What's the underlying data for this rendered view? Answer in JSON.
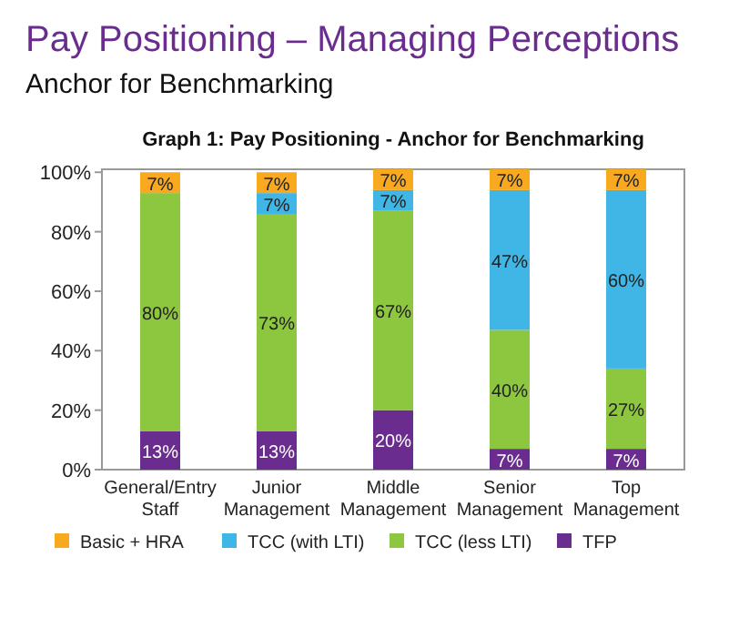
{
  "chart_data": {
    "type": "bar",
    "title": "Pay Positioning – Managing Perceptions",
    "subtitle": "Anchor for Benchmarking",
    "annotations": [
      "Graph 1: Pay Positioning - Anchor for Benchmarking"
    ],
    "categories": [
      "General/Entry Staff",
      "Junior Management",
      "Middle Management",
      "Senior Management",
      "Top Management"
    ],
    "stacked": true,
    "series": [
      {
        "name": "TFP",
        "color": "#6a2c8e",
        "values": [
          13,
          13,
          20,
          7,
          7
        ],
        "value_labels": [
          "13%",
          "13%",
          "20%",
          "7%",
          "7%"
        ]
      },
      {
        "name": "TCC (less LTI)",
        "color": "#8dc63f",
        "values": [
          80,
          73,
          67,
          40,
          27
        ],
        "value_labels": [
          "80%",
          "73%",
          "67%",
          "40%",
          "27%"
        ]
      },
      {
        "name": "TCC (with LTI)",
        "color": "#40b6e6",
        "values": [
          0,
          7,
          7,
          47,
          60
        ],
        "value_labels": [
          null,
          "7%",
          "7%",
          "47%",
          "60%"
        ]
      },
      {
        "name": "Basic + HRA",
        "color": "#f8a91f",
        "values": [
          7,
          7,
          7,
          7,
          7
        ],
        "value_labels": [
          "7%",
          "7%",
          "7%",
          "7%",
          "7%"
        ]
      }
    ],
    "ylim": [
      0,
      101
    ],
    "yticks": [
      {
        "value": 0,
        "label": "0%"
      },
      {
        "value": 20,
        "label": "20%"
      },
      {
        "value": 40,
        "label": "40%"
      },
      {
        "value": 60,
        "label": "60%"
      },
      {
        "value": 80,
        "label": "80%"
      },
      {
        "value": 100,
        "label": "100%"
      }
    ],
    "legend": "bottom"
  }
}
